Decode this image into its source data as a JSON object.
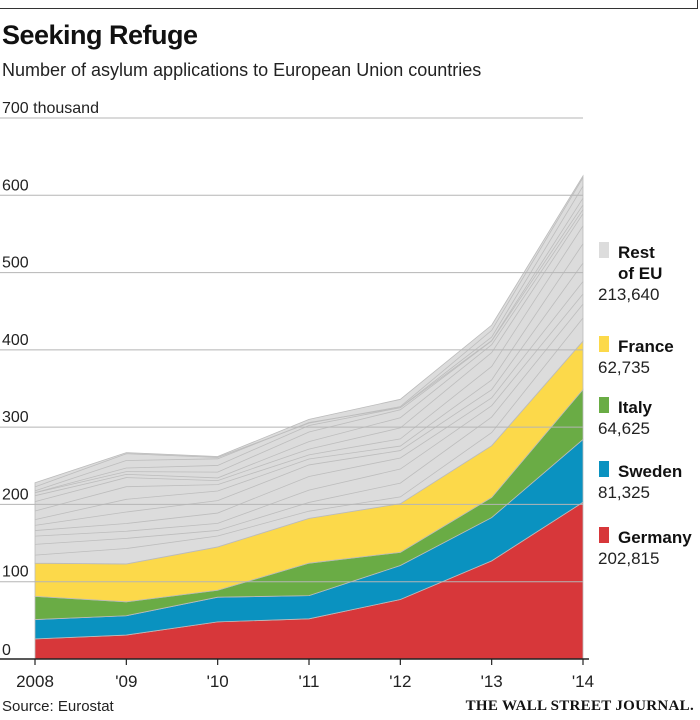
{
  "header": {
    "title": "Seeking Refuge",
    "subtitle": "Number of asylum applications to European Union countries"
  },
  "footer": {
    "source": "Source: Eurostat",
    "publisher": "THE WALL STREET JOURNAL."
  },
  "chart_data": {
    "type": "area",
    "stacked": true,
    "title": "Seeking Refuge",
    "subtitle": "Number of asylum applications to European Union countries",
    "ylabel": "thousand",
    "ylim": [
      0,
      700
    ],
    "yticks": [
      0,
      100,
      200,
      300,
      400,
      500,
      600,
      700
    ],
    "ytick_labels": [
      "0",
      "100",
      "200",
      "300",
      "400",
      "500",
      "600",
      "700 thousand"
    ],
    "categories": [
      "2008",
      "'09",
      "'10",
      "'11",
      "'12",
      "'13",
      "'14"
    ],
    "legend_position": "right",
    "series": [
      {
        "name": "Germany",
        "color": "#d7373a",
        "values": [
          26,
          31,
          48,
          52,
          77,
          127,
          202.8
        ],
        "label_value": "202,815"
      },
      {
        "name": "Sweden",
        "color": "#0a92c0",
        "values": [
          25,
          25,
          32,
          30,
          44,
          56,
          81.3
        ],
        "label_value": "81,325"
      },
      {
        "name": "Italy",
        "color": "#6aac45",
        "values": [
          30,
          18,
          9,
          42,
          17,
          26,
          64.6
        ],
        "label_value": "64,625"
      },
      {
        "name": "France",
        "color": "#fcd94a",
        "values": [
          43,
          49,
          56,
          58,
          63,
          67,
          62.7
        ],
        "label_value": "62,735"
      },
      {
        "name": "Rest of EU",
        "name_lines": [
          "Rest",
          "of EU"
        ],
        "color": "#dcdcdc",
        "values": [
          104,
          144,
          117,
          128,
          135,
          156,
          213.6
        ],
        "label_value": "213,640"
      }
    ]
  }
}
